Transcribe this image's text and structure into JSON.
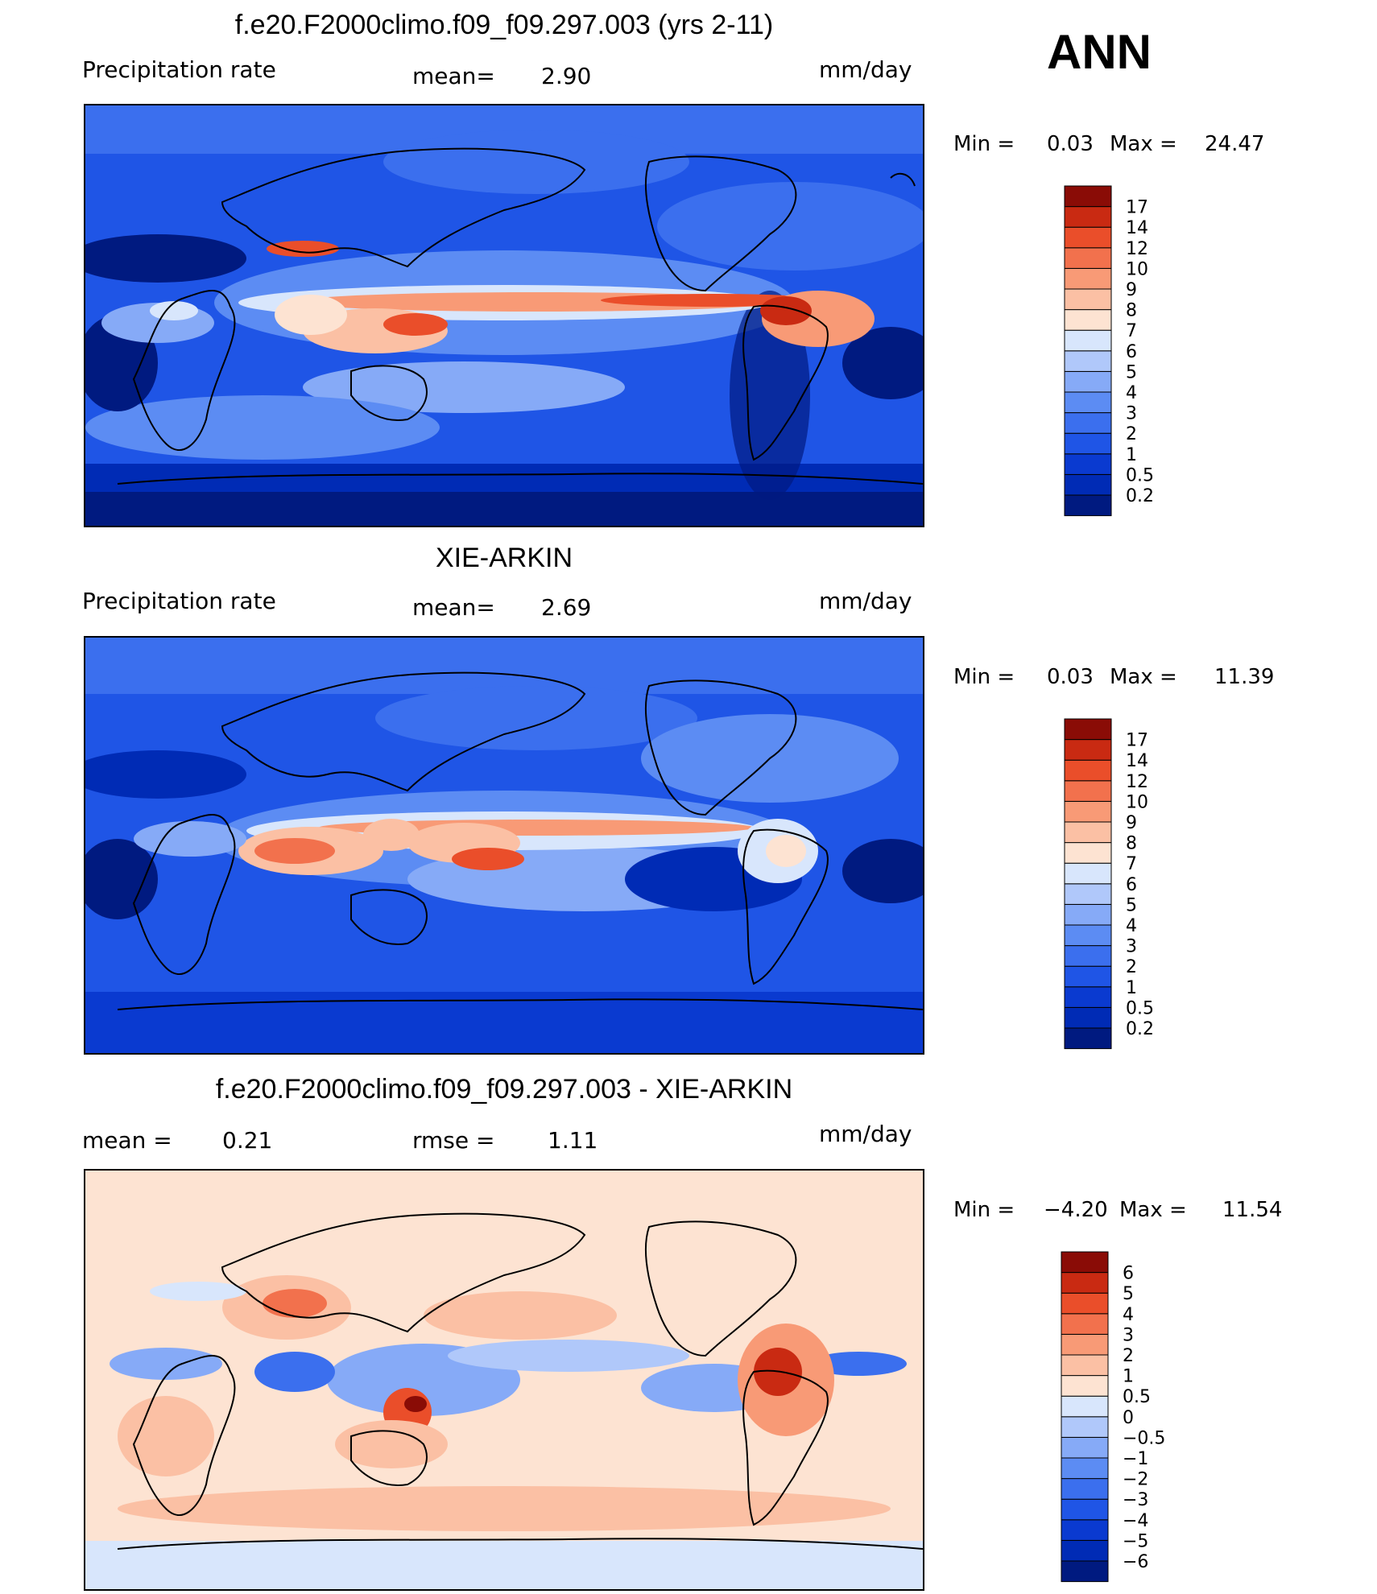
{
  "season": "ANN",
  "chart_data": [
    {
      "type": "heatmap",
      "title": "f.e20.F2000climo.f09_f09.297.003 (yrs 2-11)",
      "left_label": "Precipitation  rate",
      "mean_label": "mean=",
      "mean_value": "2.90",
      "units": "mm/day",
      "min_label": "Min  =",
      "min_value": "0.03",
      "max_label": "Max  =",
      "max_value": "24.47",
      "levels": [
        "0.2",
        "0.5",
        "1",
        "2",
        "3",
        "4",
        "5",
        "6",
        "7",
        "8",
        "9",
        "10",
        "12",
        "14",
        "17"
      ],
      "colors": [
        "#001a80",
        "#002bb5",
        "#0a3ad0",
        "#1f55e6",
        "#3b6fee",
        "#5c8cf3",
        "#86aaf7",
        "#b0c8fa",
        "#d8e6fc",
        "#fde3d2",
        "#fbc0a4",
        "#f89a76",
        "#f2714d",
        "#ea4e2a",
        "#c92a12",
        "#8a0c06"
      ]
    },
    {
      "type": "heatmap",
      "title": "XIE-ARKIN",
      "left_label": "Precipitation  rate",
      "mean_label": "mean=",
      "mean_value": "2.69",
      "units": "mm/day",
      "min_label": "Min  =",
      "min_value": "0.03",
      "max_label": "Max  =",
      "max_value": "11.39",
      "levels": [
        "0.2",
        "0.5",
        "1",
        "2",
        "3",
        "4",
        "5",
        "6",
        "7",
        "8",
        "9",
        "10",
        "12",
        "14",
        "17"
      ],
      "colors": [
        "#001a80",
        "#002bb5",
        "#0a3ad0",
        "#1f55e6",
        "#3b6fee",
        "#5c8cf3",
        "#86aaf7",
        "#b0c8fa",
        "#d8e6fc",
        "#fde3d2",
        "#fbc0a4",
        "#f89a76",
        "#f2714d",
        "#ea4e2a",
        "#c92a12",
        "#8a0c06"
      ]
    },
    {
      "type": "heatmap",
      "title": "f.e20.F2000climo.f09_f09.297.003 - XIE-ARKIN",
      "left_label": "mean  =",
      "left_value": "0.21",
      "mid_label": "rmse  =",
      "mid_value": "1.11",
      "units": "mm/day",
      "min_label": "Min  =",
      "min_value": "−4.20",
      "max_label": "Max  =",
      "max_value": "11.54",
      "levels": [
        "−6",
        "−5",
        "−4",
        "−3",
        "−2",
        "−1",
        "−0.5",
        "0",
        "0.5",
        "1",
        "2",
        "3",
        "4",
        "5",
        "6"
      ],
      "colors": [
        "#001a80",
        "#002bb5",
        "#0a3ad0",
        "#1f55e6",
        "#3b6fee",
        "#5c8cf3",
        "#86aaf7",
        "#b0c8fa",
        "#d8e6fc",
        "#fde3d2",
        "#fbc0a4",
        "#f89a76",
        "#f2714d",
        "#ea4e2a",
        "#c92a12",
        "#8a0c06"
      ]
    }
  ]
}
